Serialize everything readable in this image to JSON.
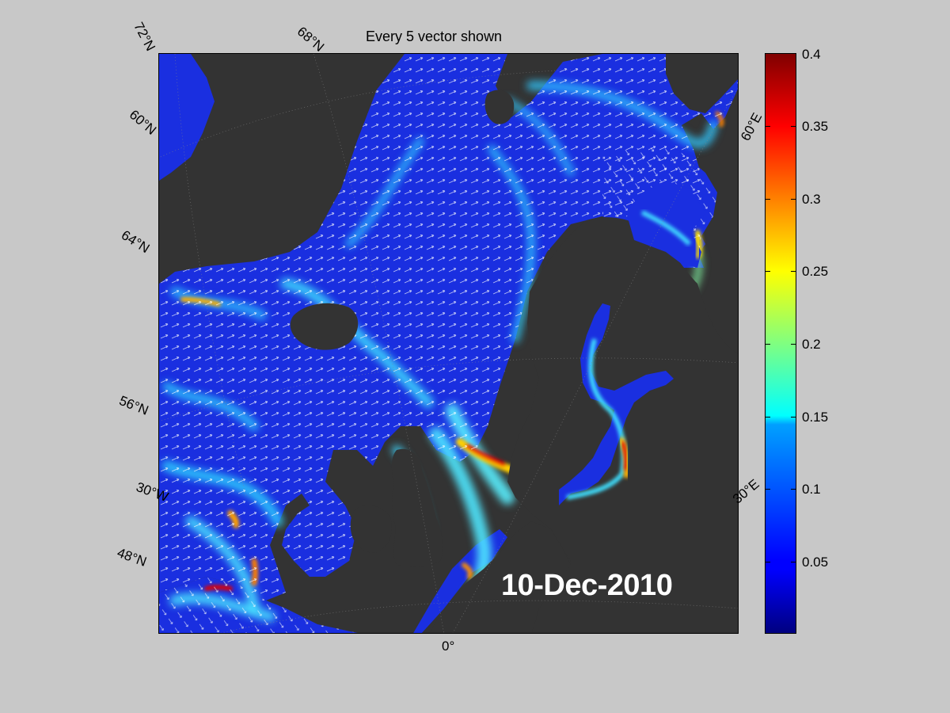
{
  "figure": {
    "title": "Every 5 vector shown",
    "date": "10-Dec-2010"
  },
  "map": {
    "type": "ocean-current-speed-map",
    "region": "North Atlantic / North Sea / Baltic / Barents Sea",
    "colormap": "jet",
    "land_color": "#333333",
    "ocean_low_color": "#0a1ee6",
    "ocean_high_color": "#d00000",
    "vector_color": "#ffffff",
    "geo_labels": {
      "lat_72": "72°N",
      "lat_68": "68°N",
      "lat_64": "64°N",
      "lat_60": "60°N",
      "lat_56": "56°N",
      "lat_48": "48°N",
      "lon_30w": "30°W",
      "lon_0": "0°",
      "lon_30e": "30°E",
      "lon_60e": "60°E"
    }
  },
  "colorbar": {
    "min": 0,
    "max": 0.4,
    "ticks": [
      "0.4",
      "0.35",
      "0.3",
      "0.25",
      "0.2",
      "0.15",
      "0.1",
      "0.05"
    ]
  }
}
